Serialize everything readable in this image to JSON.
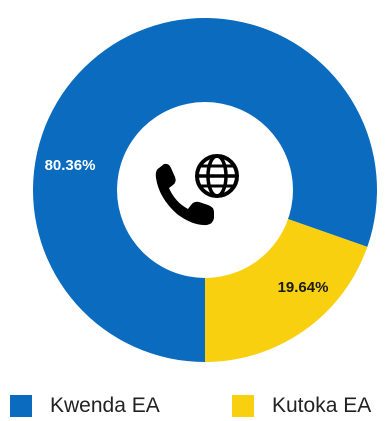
{
  "chart_data": {
    "type": "pie",
    "variant": "donut",
    "center_icon": "phone-globe-icon",
    "slices": [
      {
        "label": "Kwenda EA",
        "value": 80.36,
        "display": "80.36%",
        "color": "#0A6BBF"
      },
      {
        "label": "Kutoka EA",
        "value": 19.64,
        "display": "19.64%",
        "color": "#F9D00F"
      }
    ],
    "legend_position": "bottom"
  }
}
